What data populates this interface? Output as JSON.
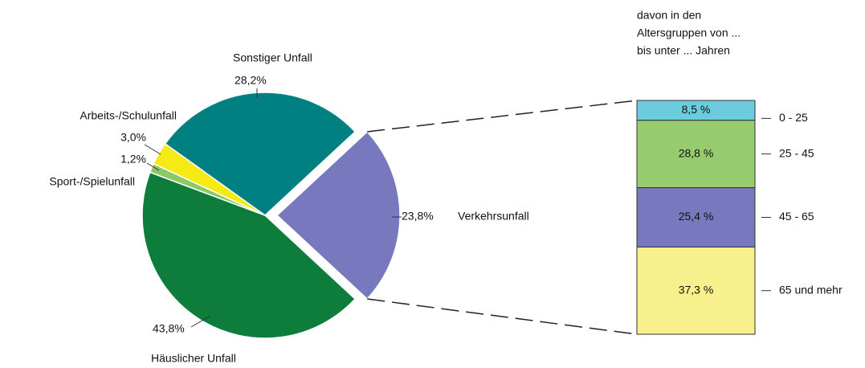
{
  "chart_data": [
    {
      "type": "pie",
      "categories": [
        "Verkehrsunfall",
        "Häuslicher Unfall",
        "Sport-/Spielunfall",
        "Arbeits-/Schulunfall",
        "Sonstiger Unfall"
      ],
      "values": [
        23.8,
        43.8,
        1.2,
        3.0,
        28.2
      ],
      "value_labels": [
        "23,8%",
        "43,8%",
        "1,2%",
        "3,0%",
        "28,2%"
      ],
      "colors": [
        "#7878be",
        "#0e7d3c",
        "#8cc864",
        "#f5ea14",
        "#008080"
      ]
    },
    {
      "type": "stacked_bar",
      "title": [
        "davon in den",
        "Altersgruppen von ...",
        "bis unter ... Jahren"
      ],
      "categories": [
        "0 - 25",
        "25 - 45",
        "45 - 65",
        "65 und mehr"
      ],
      "values": [
        8.5,
        28.8,
        25.4,
        37.3
      ],
      "value_labels": [
        "8,5 %",
        "28,8 %",
        "25,4 %",
        "37,3 %"
      ],
      "colors": [
        "#6ccbdd",
        "#96cc6e",
        "#7878be",
        "#f8f08c"
      ]
    }
  ]
}
